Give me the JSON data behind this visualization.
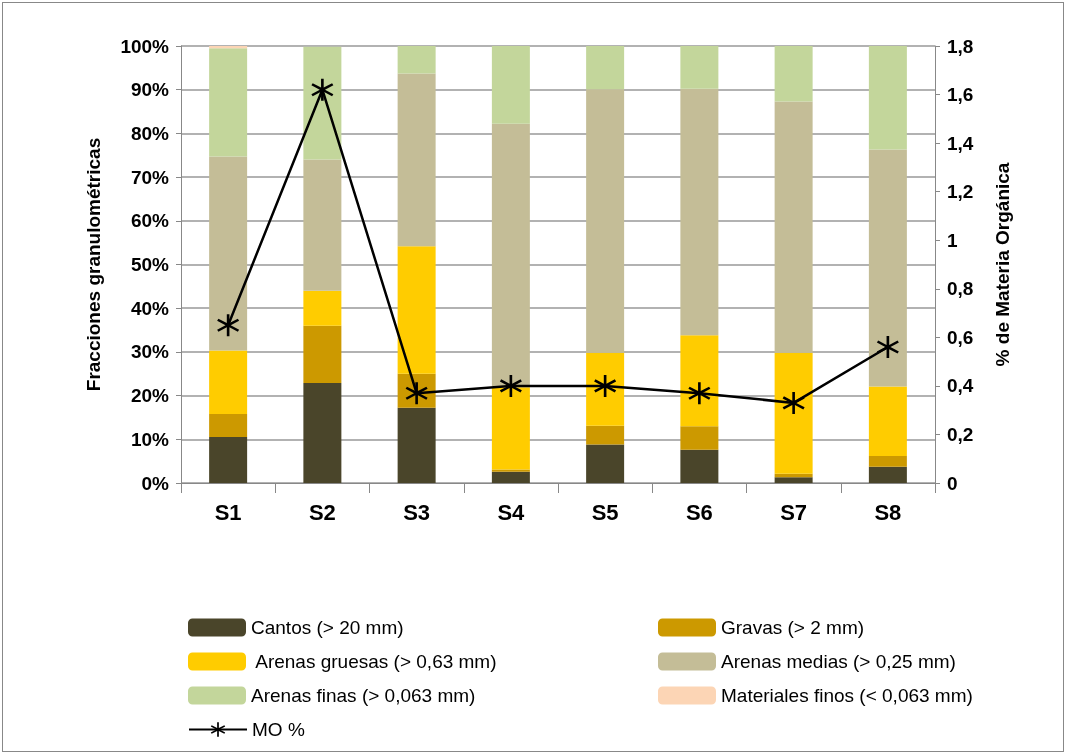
{
  "chart_data": {
    "type": "bar",
    "stacked": true,
    "ylabel": "Fracciones granulométricas",
    "y2label": "% de Materia Orgánica",
    "categories": [
      "S1",
      "S2",
      "S3",
      "S4",
      "S5",
      "S6",
      "S7",
      "S8"
    ],
    "series": [
      {
        "name": "Cantos (> 20 mm)",
        "color": "#4a452a",
        "values": [
          10.5,
          22.9,
          17.2,
          2.6,
          8.8,
          7.6,
          1.3,
          3.7
        ]
      },
      {
        "name": "Gravas (> 2 mm)",
        "color": "#cc9900",
        "values": [
          5.3,
          13.1,
          7.8,
          0.5,
          4.3,
          5.4,
          0.8,
          2.5
        ]
      },
      {
        "name": " Arenas gruesas (> 0,63 mm)",
        "color": "#ffcc00",
        "values": [
          14.5,
          8.0,
          29.2,
          18.8,
          16.7,
          20.8,
          27.7,
          15.9
        ]
      },
      {
        "name": "Arenas medias (> 0,25 mm)",
        "color": "#c4bd97",
        "values": [
          44.4,
          30.0,
          39.5,
          60.3,
          60.3,
          56.4,
          57.5,
          54.2
        ]
      },
      {
        "name": "Arenas finas (> 0,063 mm)",
        "color": "#c3d69b",
        "values": [
          24.8,
          25.8,
          6.3,
          17.8,
          9.9,
          9.8,
          12.7,
          23.7
        ]
      },
      {
        "name": "Materiales finos (< 0,063 mm)",
        "color": "#fcd5b5",
        "values": [
          0.5,
          null,
          0,
          0,
          0,
          0,
          0,
          0
        ]
      },
      {
        "name": "MO %",
        "type": "line",
        "axis": "y2",
        "color": "#000000",
        "marker": "cross",
        "line_style": "solid",
        "values": [
          0.65,
          1.62,
          0.37,
          0.4,
          0.4,
          0.37,
          0.33,
          0.56
        ]
      }
    ],
    "ylim": [
      0,
      100
    ],
    "yticks": [
      {
        "value": 0,
        "label": "0%"
      },
      {
        "value": 10,
        "label": "10%"
      },
      {
        "value": 20,
        "label": "20%"
      },
      {
        "value": 30,
        "label": "30%"
      },
      {
        "value": 40,
        "label": "40%"
      },
      {
        "value": 50,
        "label": "50%"
      },
      {
        "value": 60,
        "label": "60%"
      },
      {
        "value": 70,
        "label": "70%"
      },
      {
        "value": 80,
        "label": "80%"
      },
      {
        "value": 90,
        "label": "90%"
      },
      {
        "value": 100,
        "label": "100%"
      }
    ],
    "y2lim": [
      0,
      1.8
    ],
    "y2ticks": [
      0,
      {
        "value": 0.2,
        "label": "0,2"
      },
      {
        "value": 0.4,
        "label": "0,4"
      },
      {
        "value": 0.6,
        "label": "0,6"
      },
      {
        "value": 0.8,
        "label": "0,8"
      },
      1,
      {
        "value": 1.2,
        "label": "1,2"
      },
      {
        "value": 1.4,
        "label": "1,4"
      },
      {
        "value": 1.6,
        "label": "1,6"
      },
      {
        "value": 1.8,
        "label": "1,8"
      }
    ],
    "grid": "y",
    "legend": "bottom"
  }
}
